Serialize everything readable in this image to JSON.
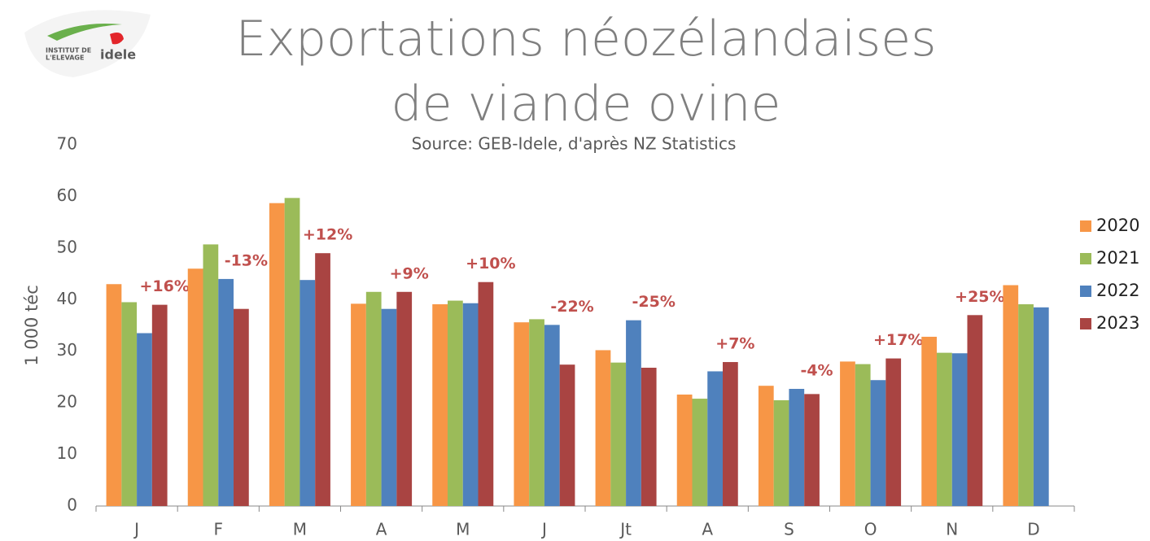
{
  "logo": {
    "line1": "INSTITUT DE",
    "line2": "L'ELEVAGE",
    "brand": "idele"
  },
  "chart_data": {
    "type": "bar",
    "title": "Exportations néozélandaises de viande ovine",
    "subtitle": "Source: GEB-Idele, d'après NZ Statistics",
    "y_label": "1 000 téc",
    "categories": [
      "J",
      "F",
      "M",
      "A",
      "M",
      "J",
      "Jt",
      "A",
      "S",
      "O",
      "N",
      "D"
    ],
    "series": [
      {
        "name": "2020",
        "color": "#f79646",
        "values": [
          43,
          46,
          58.7,
          39.2,
          39.1,
          35.6,
          30.2,
          21.6,
          23.3,
          28,
          32.8,
          42.8
        ]
      },
      {
        "name": "2021",
        "color": "#9bbb59",
        "values": [
          39.5,
          50.7,
          59.7,
          41.5,
          39.8,
          36.2,
          27.8,
          20.8,
          20.5,
          27.5,
          29.7,
          39.1
        ]
      },
      {
        "name": "2022",
        "color": "#4f81bd",
        "values": [
          33.5,
          44,
          43.8,
          38.2,
          39.3,
          35.1,
          36,
          26.1,
          22.7,
          24.4,
          29.6,
          38.5
        ]
      },
      {
        "name": "2023",
        "color": "#a94442",
        "values": [
          39,
          38.2,
          49,
          41.5,
          43.4,
          27.4,
          26.8,
          27.9,
          21.7,
          28.6,
          37,
          null
        ]
      }
    ],
    "annotations": [
      "+16%",
      "-13%",
      "+12%",
      "+9%",
      "+10%",
      "-22%",
      "-25%",
      "+7%",
      "-4%",
      "+17%",
      "+25%"
    ],
    "annotation_color": "#c0504d",
    "ylim": [
      0,
      70
    ],
    "yticks": [
      0,
      10,
      20,
      30,
      40,
      50,
      60,
      70
    ],
    "grid": false,
    "legend": "right"
  }
}
